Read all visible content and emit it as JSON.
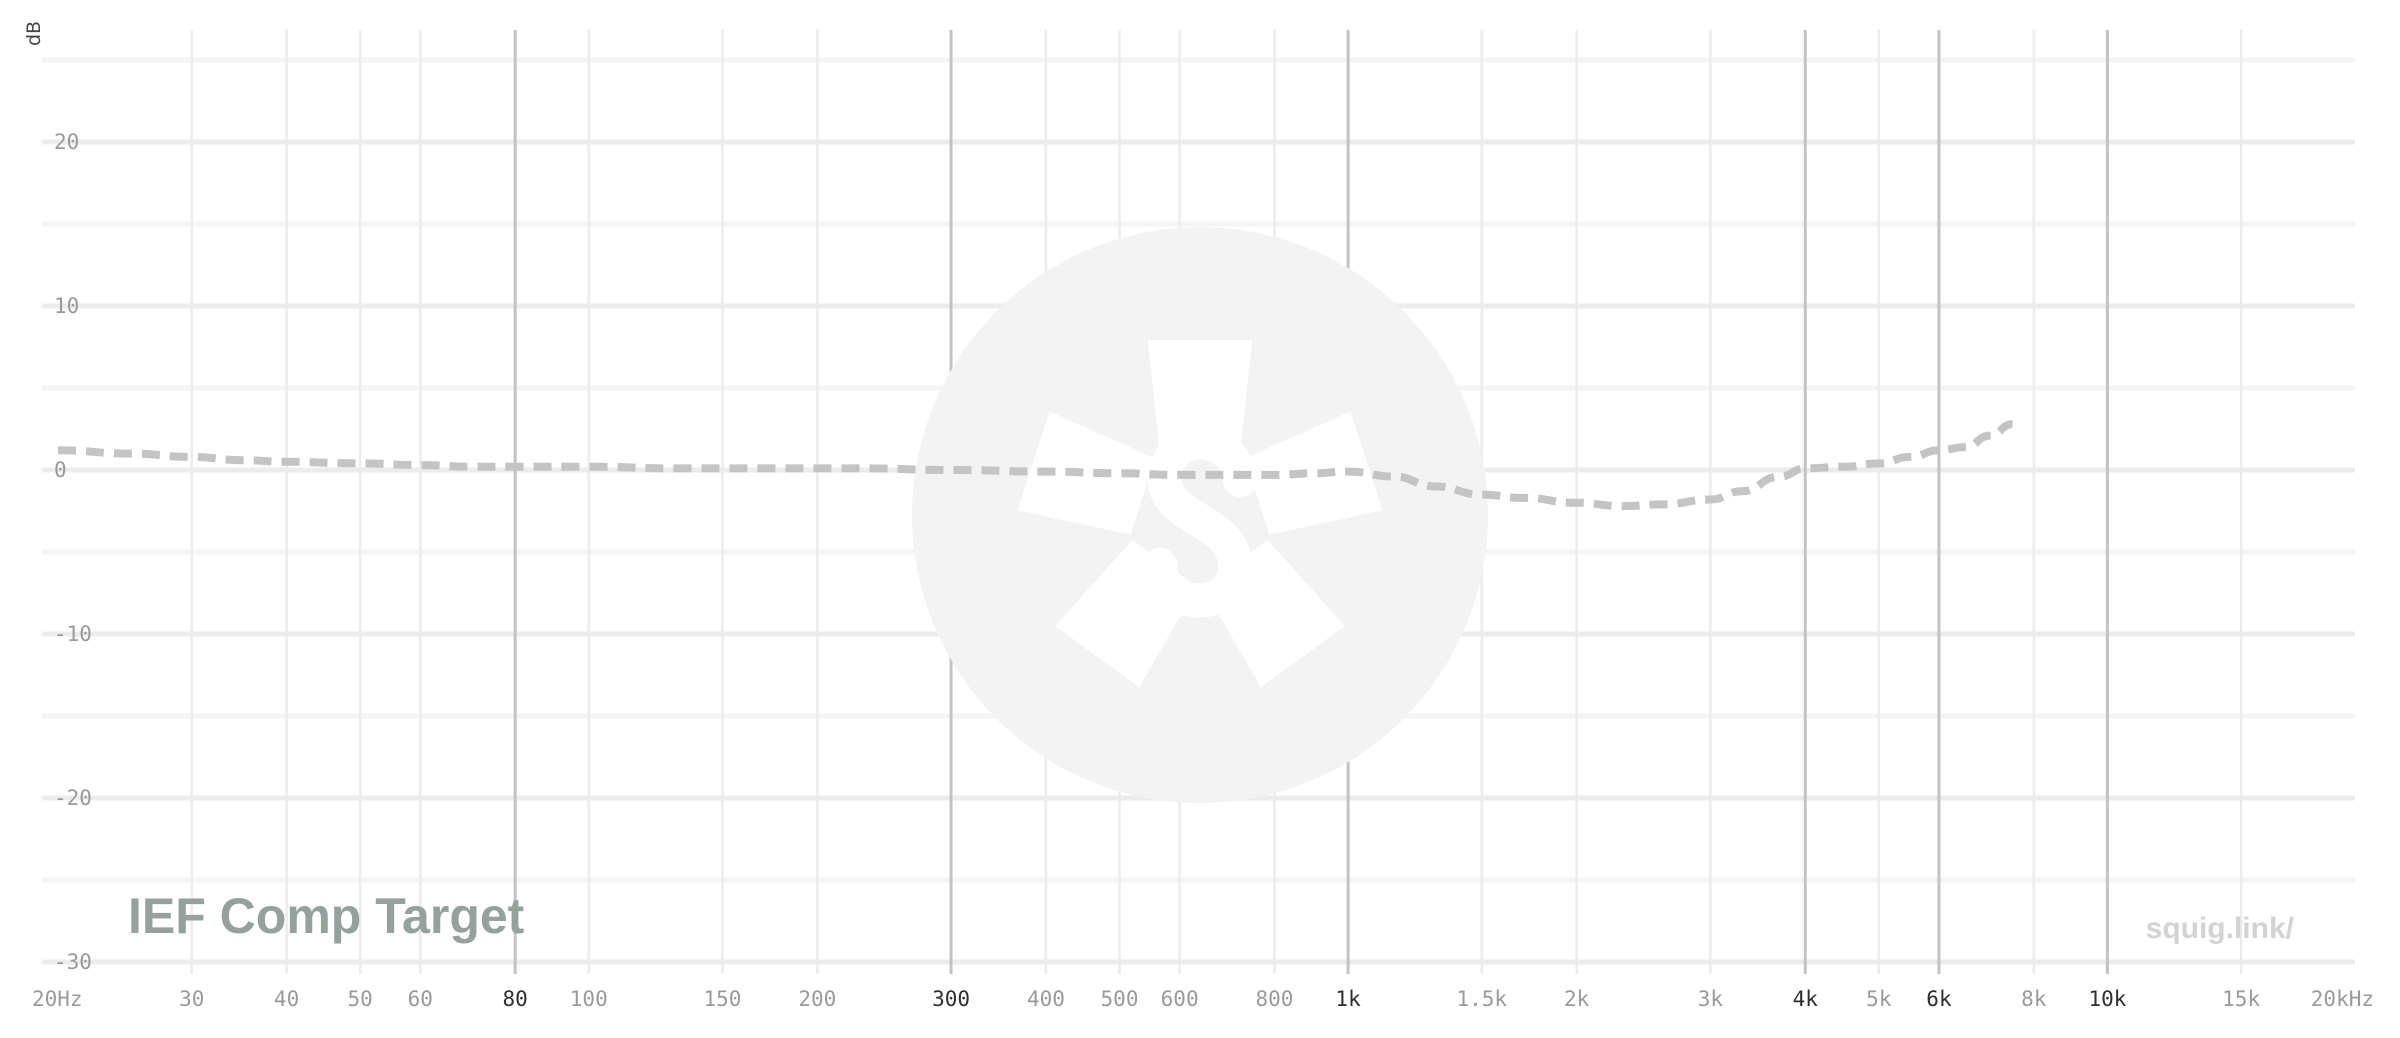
{
  "chart_data": {
    "type": "line",
    "x_scale": "log",
    "x_range_hz": [
      20,
      20000
    ],
    "y_range_db": [
      -32,
      25
    ],
    "y_unit": "dB",
    "y_ticks": [
      {
        "value": 20,
        "label": "20"
      },
      {
        "value": 10,
        "label": "10"
      },
      {
        "value": 0,
        "label": "0"
      },
      {
        "value": -10,
        "label": "-10"
      },
      {
        "value": -20,
        "label": "-20"
      },
      {
        "value": -30,
        "label": "-30"
      }
    ],
    "x_ticks": [
      {
        "hz": 20,
        "label": "20Hz",
        "major": false
      },
      {
        "hz": 30,
        "label": "30",
        "major": false
      },
      {
        "hz": 40,
        "label": "40",
        "major": false
      },
      {
        "hz": 50,
        "label": "50",
        "major": false
      },
      {
        "hz": 60,
        "label": "60",
        "major": false
      },
      {
        "hz": 80,
        "label": "80",
        "major": true
      },
      {
        "hz": 100,
        "label": "100",
        "major": false
      },
      {
        "hz": 150,
        "label": "150",
        "major": false
      },
      {
        "hz": 200,
        "label": "200",
        "major": false
      },
      {
        "hz": 300,
        "label": "300",
        "major": true
      },
      {
        "hz": 400,
        "label": "400",
        "major": false
      },
      {
        "hz": 500,
        "label": "500",
        "major": false
      },
      {
        "hz": 600,
        "label": "600",
        "major": false
      },
      {
        "hz": 800,
        "label": "800",
        "major": false
      },
      {
        "hz": 1000,
        "label": "1k",
        "major": true
      },
      {
        "hz": 1500,
        "label": "1.5k",
        "major": false
      },
      {
        "hz": 2000,
        "label": "2k",
        "major": false
      },
      {
        "hz": 3000,
        "label": "3k",
        "major": false
      },
      {
        "hz": 4000,
        "label": "4k",
        "major": true
      },
      {
        "hz": 5000,
        "label": "5k",
        "major": false
      },
      {
        "hz": 6000,
        "label": "6k",
        "major": true
      },
      {
        "hz": 8000,
        "label": "8k",
        "major": false
      },
      {
        "hz": 10000,
        "label": "10k",
        "major": true
      },
      {
        "hz": 15000,
        "label": "15k",
        "major": false
      },
      {
        "hz": 20000,
        "label": "20kHz",
        "major": false
      }
    ],
    "series": [
      {
        "name": "IEF Comp Target",
        "color": "#c4c4c4",
        "style": "dashed",
        "points": [
          [
            20,
            1.2
          ],
          [
            25,
            1.0
          ],
          [
            30,
            0.8
          ],
          [
            35,
            0.6
          ],
          [
            40,
            0.5
          ],
          [
            50,
            0.4
          ],
          [
            60,
            0.3
          ],
          [
            70,
            0.2
          ],
          [
            80,
            0.2
          ],
          [
            100,
            0.2
          ],
          [
            130,
            0.1
          ],
          [
            170,
            0.1
          ],
          [
            200,
            0.1
          ],
          [
            230,
            0.1
          ],
          [
            300,
            0.0
          ],
          [
            400,
            -0.1
          ],
          [
            500,
            -0.2
          ],
          [
            600,
            -0.3
          ],
          [
            700,
            -0.3
          ],
          [
            800,
            -0.3
          ],
          [
            900,
            -0.2
          ],
          [
            1000,
            -0.1
          ],
          [
            1150,
            -0.4
          ],
          [
            1300,
            -1.0
          ],
          [
            1500,
            -1.5
          ],
          [
            1700,
            -1.7
          ],
          [
            2000,
            -2.0
          ],
          [
            2300,
            -2.2
          ],
          [
            2600,
            -2.1
          ],
          [
            3000,
            -1.8
          ],
          [
            3300,
            -1.3
          ],
          [
            3700,
            -0.4
          ],
          [
            4000,
            0.1
          ],
          [
            4500,
            0.2
          ],
          [
            5000,
            0.4
          ],
          [
            5500,
            0.8
          ],
          [
            6000,
            1.2
          ],
          [
            6500,
            1.4
          ],
          [
            7000,
            2.1
          ],
          [
            7500,
            2.8
          ]
        ]
      }
    ]
  },
  "chart_label": "IEF Comp Target",
  "watermark_url": "squig.link/",
  "colors": {
    "grid_minor": "#ececec",
    "grid_major": "#c3c3c3",
    "curve": "#c4c4c4",
    "logo_disc": "#f3f3f3"
  }
}
